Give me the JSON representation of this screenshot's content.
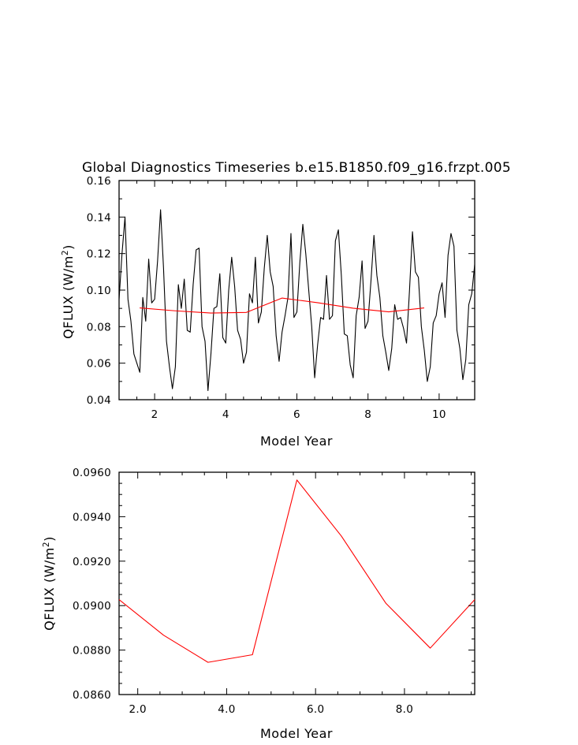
{
  "title": "Global Diagnostics Timeseries b.e15.B1850.f09_g16.frzpt.005",
  "colors": {
    "monthly": "#000000",
    "annual": "#ff0000",
    "axes": "#000000",
    "background": "#ffffff"
  },
  "chart_data": [
    {
      "type": "line",
      "title": "Global Diagnostics Timeseries b.e15.B1850.f09_g16.frzpt.005",
      "xlabel": "Model Year",
      "ylabel_main": "QFLUX (W/m",
      "ylabel_sup": "2",
      "ylabel_close": ")",
      "xlim": [
        1.0,
        11.0
      ],
      "ylim": [
        0.04,
        0.16
      ],
      "xticks": [
        2,
        4,
        6,
        8,
        10
      ],
      "xtick_labels": [
        "2",
        "4",
        "6",
        "8",
        "10"
      ],
      "yticks": [
        0.04,
        0.06,
        0.08,
        0.1,
        0.12,
        0.14,
        0.16
      ],
      "ytick_labels": [
        "0.04",
        "0.06",
        "0.08",
        "0.10",
        "0.12",
        "0.14",
        "0.16"
      ],
      "xminor_step": 0.5,
      "yminor_step": 0.01,
      "grid": false,
      "series": [
        {
          "color": "#000000",
          "x": [
            1.0,
            1.083,
            1.167,
            1.25,
            1.333,
            1.417,
            1.5,
            1.583,
            1.667,
            1.75,
            1.833,
            1.917,
            2.0,
            2.083,
            2.167,
            2.25,
            2.333,
            2.417,
            2.5,
            2.583,
            2.667,
            2.75,
            2.833,
            2.917,
            3.0,
            3.083,
            3.167,
            3.25,
            3.333,
            3.417,
            3.5,
            3.583,
            3.667,
            3.75,
            3.833,
            3.917,
            4.0,
            4.083,
            4.167,
            4.25,
            4.333,
            4.417,
            4.5,
            4.583,
            4.667,
            4.75,
            4.833,
            4.917,
            5.0,
            5.083,
            5.167,
            5.25,
            5.333,
            5.417,
            5.5,
            5.583,
            5.667,
            5.75,
            5.833,
            5.917,
            6.0,
            6.083,
            6.167,
            6.25,
            6.333,
            6.417,
            6.5,
            6.583,
            6.667,
            6.75,
            6.833,
            6.917,
            7.0,
            7.083,
            7.167,
            7.25,
            7.333,
            7.417,
            7.5,
            7.583,
            7.667,
            7.75,
            7.833,
            7.917,
            8.0,
            8.083,
            8.167,
            8.25,
            8.333,
            8.417,
            8.5,
            8.583,
            8.667,
            8.75,
            8.833,
            8.917,
            9.0,
            9.083,
            9.167,
            9.25,
            9.333,
            9.417,
            9.5,
            9.583,
            9.667,
            9.75,
            9.833,
            9.917,
            10.0,
            10.083,
            10.167,
            10.25,
            10.333,
            10.417,
            10.5,
            10.583,
            10.667,
            10.75,
            10.833,
            10.917,
            11.0
          ],
          "values": [
            0.095,
            0.12,
            0.14,
            0.095,
            0.083,
            0.065,
            0.06,
            0.055,
            0.096,
            0.083,
            0.117,
            0.093,
            0.095,
            0.116,
            0.144,
            0.112,
            0.072,
            0.058,
            0.046,
            0.058,
            0.103,
            0.09,
            0.106,
            0.078,
            0.077,
            0.103,
            0.122,
            0.123,
            0.08,
            0.072,
            0.045,
            0.065,
            0.09,
            0.091,
            0.109,
            0.074,
            0.071,
            0.1,
            0.118,
            0.102,
            0.078,
            0.073,
            0.06,
            0.066,
            0.098,
            0.093,
            0.118,
            0.082,
            0.088,
            0.112,
            0.13,
            0.11,
            0.102,
            0.075,
            0.061,
            0.077,
            0.086,
            0.096,
            0.131,
            0.085,
            0.088,
            0.115,
            0.136,
            0.12,
            0.1,
            0.08,
            0.052,
            0.07,
            0.085,
            0.084,
            0.108,
            0.084,
            0.086,
            0.127,
            0.133,
            0.108,
            0.076,
            0.075,
            0.059,
            0.052,
            0.086,
            0.096,
            0.116,
            0.079,
            0.083,
            0.105,
            0.13,
            0.108,
            0.096,
            0.075,
            0.066,
            0.056,
            0.068,
            0.092,
            0.084,
            0.085,
            0.079,
            0.071,
            0.1,
            0.132,
            0.11,
            0.107,
            0.08,
            0.067,
            0.05,
            0.058,
            0.082,
            0.086,
            0.098,
            0.104,
            0.085,
            0.119,
            0.131,
            0.124,
            0.078,
            0.068,
            0.051,
            0.062,
            0.092,
            0.098,
            0.114
          ]
        },
        {
          "color": "#ff0000",
          "x": [
            1.58,
            2.58,
            3.58,
            4.58,
            5.58,
            6.58,
            7.58,
            8.58,
            9.58
          ],
          "values": [
            0.09027,
            0.08867,
            0.08745,
            0.08779,
            0.09565,
            0.09313,
            0.09011,
            0.08809,
            0.09027
          ]
        }
      ]
    },
    {
      "type": "line",
      "title": "",
      "xlabel": "Model Year",
      "ylabel_main": "QFLUX (W/m",
      "ylabel_sup": "2",
      "ylabel_close": ")",
      "xlim": [
        1.58,
        9.58
      ],
      "ylim": [
        0.086,
        0.096
      ],
      "xticks": [
        2.0,
        4.0,
        6.0,
        8.0
      ],
      "xtick_labels": [
        "2.0",
        "4.0",
        "6.0",
        "8.0"
      ],
      "yticks": [
        0.086,
        0.088,
        0.09,
        0.092,
        0.094,
        0.096
      ],
      "ytick_labels": [
        "0.0860",
        "0.0880",
        "0.0900",
        "0.0920",
        "0.0940",
        "0.0960"
      ],
      "xminor_step": 0.5,
      "yminor_step": 0.0005,
      "grid": false,
      "series": [
        {
          "color": "#ff0000",
          "x": [
            1.58,
            2.58,
            3.58,
            4.58,
            5.58,
            6.58,
            7.58,
            8.58,
            9.58
          ],
          "values": [
            0.09027,
            0.08867,
            0.08745,
            0.08779,
            0.09565,
            0.09313,
            0.09011,
            0.08809,
            0.09027
          ]
        }
      ]
    }
  ]
}
